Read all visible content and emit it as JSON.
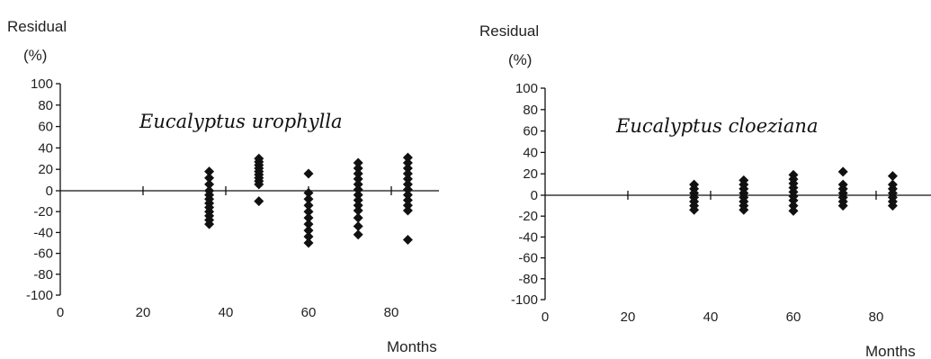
{
  "chart_data": [
    {
      "type": "scatter",
      "title": "Eucalyptus  urophylla",
      "ylabel": "Residual",
      "yunit": "(%)",
      "xlabel": "Months",
      "xlim": [
        0,
        95
      ],
      "ylim": [
        -100,
        100
      ],
      "xticks": [
        "0",
        "20",
        "40",
        "60",
        "80"
      ],
      "yticks": [
        "100",
        "80",
        "60",
        "40",
        "20",
        "0",
        "-20",
        "-40",
        "-60",
        "-80",
        "-100"
      ],
      "points": [
        [
          36,
          18
        ],
        [
          36,
          12
        ],
        [
          36,
          6
        ],
        [
          36,
          0
        ],
        [
          36,
          -4
        ],
        [
          36,
          -8
        ],
        [
          36,
          -12
        ],
        [
          36,
          -16
        ],
        [
          36,
          -20
        ],
        [
          36,
          -24
        ],
        [
          36,
          -28
        ],
        [
          36,
          -32
        ],
        [
          48,
          30
        ],
        [
          48,
          27
        ],
        [
          48,
          24
        ],
        [
          48,
          21
        ],
        [
          48,
          18
        ],
        [
          48,
          15
        ],
        [
          48,
          12
        ],
        [
          48,
          9
        ],
        [
          48,
          6
        ],
        [
          48,
          -10
        ],
        [
          60,
          16
        ],
        [
          60,
          -2
        ],
        [
          60,
          -8
        ],
        [
          60,
          -14
        ],
        [
          60,
          -20
        ],
        [
          60,
          -26
        ],
        [
          60,
          -32
        ],
        [
          60,
          -38
        ],
        [
          60,
          -44
        ],
        [
          60,
          -50
        ],
        [
          72,
          26
        ],
        [
          72,
          21
        ],
        [
          72,
          16
        ],
        [
          72,
          11
        ],
        [
          72,
          6
        ],
        [
          72,
          1
        ],
        [
          72,
          -4
        ],
        [
          72,
          -9
        ],
        [
          72,
          -14
        ],
        [
          72,
          -19
        ],
        [
          72,
          -26
        ],
        [
          72,
          -34
        ],
        [
          72,
          -42
        ],
        [
          84,
          31
        ],
        [
          84,
          26
        ],
        [
          84,
          21
        ],
        [
          84,
          16
        ],
        [
          84,
          11
        ],
        [
          84,
          6
        ],
        [
          84,
          1
        ],
        [
          84,
          -4
        ],
        [
          84,
          -9
        ],
        [
          84,
          -14
        ],
        [
          84,
          -19
        ],
        [
          84,
          -47
        ]
      ]
    },
    {
      "type": "scatter",
      "title": "Eucalyptus  cloeziana",
      "ylabel": "Residual",
      "yunit": "(%)",
      "xlabel": "Months",
      "xlim": [
        0,
        95
      ],
      "ylim": [
        -100,
        100
      ],
      "xticks": [
        "0",
        "20",
        "40",
        "60",
        "80"
      ],
      "yticks": [
        "100",
        "80",
        "60",
        "40",
        "20",
        "0",
        "-20",
        "-40",
        "-60",
        "-80",
        "-100"
      ],
      "points": [
        [
          36,
          10
        ],
        [
          36,
          6
        ],
        [
          36,
          2
        ],
        [
          36,
          -2
        ],
        [
          36,
          -6
        ],
        [
          36,
          -10
        ],
        [
          36,
          -14
        ],
        [
          48,
          14
        ],
        [
          48,
          10
        ],
        [
          48,
          6
        ],
        [
          48,
          2
        ],
        [
          48,
          -2
        ],
        [
          48,
          -6
        ],
        [
          48,
          -10
        ],
        [
          48,
          -14
        ],
        [
          60,
          19
        ],
        [
          60,
          15
        ],
        [
          60,
          11
        ],
        [
          60,
          7
        ],
        [
          60,
          3
        ],
        [
          60,
          -1
        ],
        [
          60,
          -5
        ],
        [
          60,
          -10
        ],
        [
          60,
          -15
        ],
        [
          72,
          22
        ],
        [
          72,
          10
        ],
        [
          72,
          6
        ],
        [
          72,
          2
        ],
        [
          72,
          -2
        ],
        [
          72,
          -6
        ],
        [
          72,
          -10
        ],
        [
          84,
          18
        ],
        [
          84,
          10
        ],
        [
          84,
          6
        ],
        [
          84,
          2
        ],
        [
          84,
          -2
        ],
        [
          84,
          -6
        ],
        [
          84,
          -10
        ]
      ]
    }
  ]
}
